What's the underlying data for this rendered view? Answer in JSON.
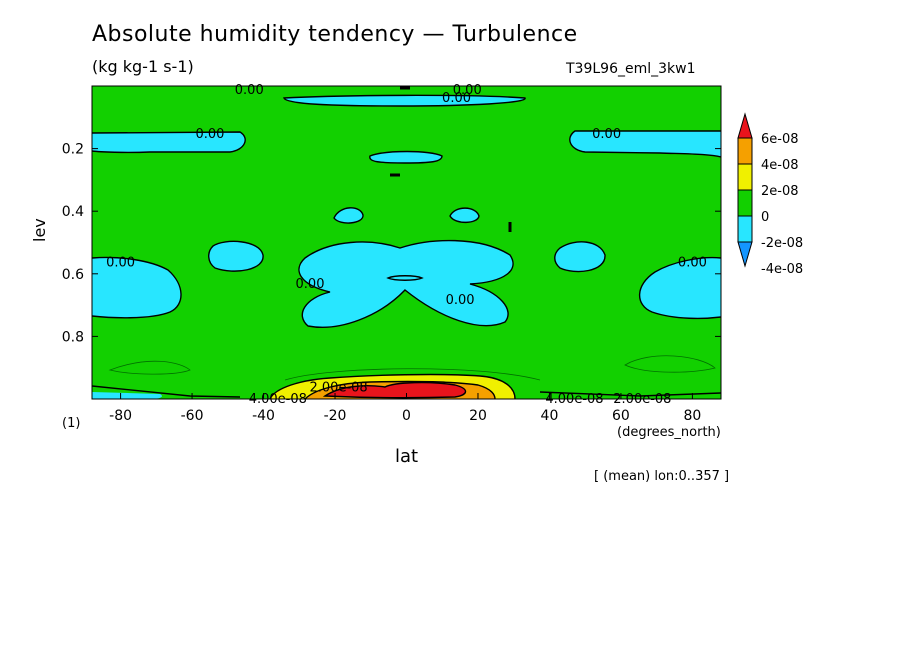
{
  "title": "Absolute humidity tendency — Turbulence",
  "units": "(kg kg-1 s-1)",
  "run_label": "T39L96_eml_3kw1",
  "page_label": "(1)",
  "footer": "[ (mean) lon:0..357 ]",
  "chart_data": {
    "type": "contour",
    "xlabel": "lat",
    "x_units": "(degrees_north)",
    "ylabel": "lev",
    "xlim": [
      -88,
      88
    ],
    "ylim": [
      0.0,
      1.0
    ],
    "y_inverted": true,
    "x_ticks": [
      -80,
      -60,
      -40,
      -20,
      0,
      20,
      40,
      60,
      80
    ],
    "y_ticks": [
      0.2,
      0.4,
      0.6,
      0.8
    ],
    "colorbar": {
      "labels": [
        "6e-08",
        "4e-08",
        "2e-08",
        "0",
        "-2e-08",
        "-4e-08"
      ],
      "colors": [
        "#e8141c",
        "#f5a000",
        "#f0f000",
        "#12d000",
        "#28e6ff",
        "#1496ff"
      ],
      "extends": "both"
    },
    "contour_labels": [
      {
        "text": "0.00",
        "lat": -44,
        "lev": 0.01
      },
      {
        "text": "0.00",
        "lat": 17,
        "lev": 0.01
      },
      {
        "text": "0.00",
        "lat": 14,
        "lev": 0.035
      },
      {
        "text": "0.00",
        "lat": -55,
        "lev": 0.15
      },
      {
        "text": "0.00",
        "lat": 56,
        "lev": 0.15
      },
      {
        "text": "0.00",
        "lat": -80,
        "lev": 0.56
      },
      {
        "text": "0.00",
        "lat": 80,
        "lev": 0.56
      },
      {
        "text": "0.00",
        "lat": -27,
        "lev": 0.63
      },
      {
        "text": "0.00",
        "lat": 15,
        "lev": 0.68
      },
      {
        "text": "2.00e-08",
        "lat": -19,
        "lev": 0.96
      },
      {
        "text": "4.00e-08",
        "lat": -36,
        "lev": 0.997
      },
      {
        "text": "4.00e-08",
        "lat": 47,
        "lev": 0.997
      },
      {
        "text": "2.00e-08",
        "lat": 66,
        "lev": 0.997
      }
    ],
    "regions": [
      {
        "sign": "negative",
        "level": "0 to -2e-08",
        "lat_range": [
          -88,
          -68
        ],
        "lev_range": [
          0.13,
          0.21
        ]
      },
      {
        "sign": "negative",
        "level": "0 to -2e-08",
        "lat_range": [
          68,
          88
        ],
        "lev_range": [
          0.13,
          0.21
        ]
      },
      {
        "sign": "negative",
        "level": "0 to -2e-08",
        "lat_range": [
          -34,
          34
        ],
        "lev_range": [
          0.03,
          0.06
        ]
      },
      {
        "sign": "negative",
        "level": "0 to -2e-08",
        "lat_range": [
          -10,
          10
        ],
        "lev_range": [
          0.21,
          0.24
        ]
      },
      {
        "sign": "negative",
        "level": "0 to -2e-08",
        "lat_range": [
          -88,
          -70
        ],
        "lev_range": [
          0.55,
          0.72
        ]
      },
      {
        "sign": "negative",
        "level": "0 to -2e-08",
        "lat_range": [
          64,
          88
        ],
        "lev_range": [
          0.55,
          0.72
        ]
      },
      {
        "sign": "negative",
        "level": "0 to -2e-08",
        "lat_range": [
          -55,
          -45
        ],
        "lev_range": [
          0.52,
          0.62
        ]
      },
      {
        "sign": "negative",
        "level": "0 to -2e-08",
        "lat_range": [
          45,
          55
        ],
        "lev_range": [
          0.52,
          0.62
        ]
      },
      {
        "sign": "negative",
        "level": "0 to -2e-08",
        "lat_range": [
          -28,
          30
        ],
        "lev_range": [
          0.52,
          0.76
        ]
      },
      {
        "sign": "positive",
        "level": "2e-08 to 6e-08+",
        "lat_range": [
          -30,
          30
        ],
        "lev_range": [
          0.93,
          1.0
        ]
      }
    ]
  }
}
